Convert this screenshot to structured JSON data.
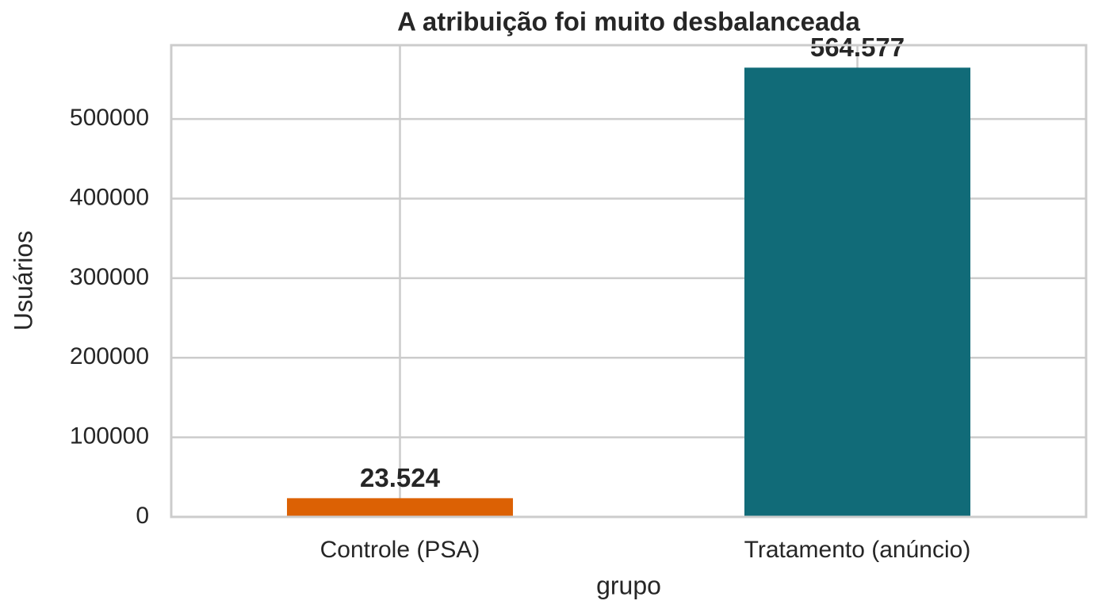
{
  "chart_data": {
    "type": "bar",
    "title": "A atribuição foi muito desbalanceada",
    "x_label": "grupo",
    "y_label": "Usuários",
    "categories": [
      "Controle (PSA)",
      "Tratamento (anúncio)"
    ],
    "values": [
      23524,
      564577
    ],
    "value_labels": [
      "23.524",
      "564.577"
    ],
    "colors": [
      "#dc6104",
      "#116b78"
    ],
    "ylim": [
      0,
      592806
    ],
    "yticks": [
      0,
      100000,
      200000,
      300000,
      400000,
      500000
    ],
    "grid": true
  }
}
